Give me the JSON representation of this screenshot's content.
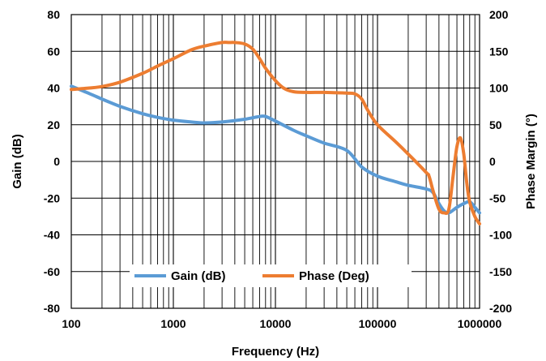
{
  "chart_data": {
    "type": "line",
    "xlabel": "Frequency (Hz)",
    "ylabel": "Gain (dB)",
    "y2label": "Phase Margin (°)",
    "xscale": "log",
    "xlim": [
      100,
      1000000
    ],
    "ylim": [
      -80,
      80
    ],
    "y2lim": [
      -200,
      200
    ],
    "x_ticks": [
      "100",
      "1000",
      "10000",
      "100000",
      "1000000"
    ],
    "y_ticks": [
      "80",
      "60",
      "40",
      "20",
      "0",
      "-20",
      "-40",
      "-60",
      "-80"
    ],
    "y2_ticks": [
      "200",
      "150",
      "100",
      "50",
      "0",
      "-50",
      "-100",
      "-150",
      "-200"
    ],
    "grid": true,
    "legend_position": "bottom-center",
    "colors": {
      "gain": "#5b9bd5",
      "phase": "#ed7d31"
    },
    "series": [
      {
        "name": "Gain (dB)",
        "axis": "left",
        "x": [
          100,
          150,
          200,
          300,
          500,
          700,
          1000,
          1500,
          2000,
          3000,
          5000,
          7000,
          8000,
          10000,
          15000,
          20000,
          30000,
          50000,
          70000,
          100000,
          150000,
          200000,
          300000,
          350000,
          400000,
          450000,
          500000,
          600000,
          700000,
          800000,
          900000,
          1000000
        ],
        "values": [
          41,
          37,
          34,
          30,
          26,
          24,
          22.5,
          21.5,
          21,
          21.5,
          23,
          24.5,
          24.5,
          22,
          17,
          14,
          10,
          6,
          -3,
          -8,
          -11,
          -13,
          -15,
          -17,
          -23,
          -27,
          -28,
          -25,
          -23,
          -22,
          -25,
          -28
        ]
      },
      {
        "name": "Phase (Deg)",
        "axis": "right",
        "x": [
          100,
          150,
          200,
          300,
          500,
          700,
          1000,
          1500,
          2000,
          3000,
          3500,
          4000,
          5000,
          6000,
          7000,
          8000,
          10000,
          12000,
          15000,
          20000,
          30000,
          50000,
          60000,
          70000,
          80000,
          100000,
          150000,
          200000,
          300000,
          320000,
          350000,
          400000,
          450000,
          500000,
          550000,
          600000,
          650000,
          700000,
          750000,
          800000,
          900000,
          1000000
        ],
        "values": [
          98,
          100,
          102,
          108,
          120,
          130,
          140,
          152,
          157,
          162,
          162,
          162,
          160,
          153,
          140,
          127,
          110,
          100,
          95,
          94,
          94,
          93,
          92,
          85,
          70,
          50,
          27,
          10,
          -15,
          -20,
          -40,
          -65,
          -70,
          -65,
          -20,
          20,
          32,
          10,
          -30,
          -55,
          -75,
          -85
        ]
      }
    ]
  }
}
